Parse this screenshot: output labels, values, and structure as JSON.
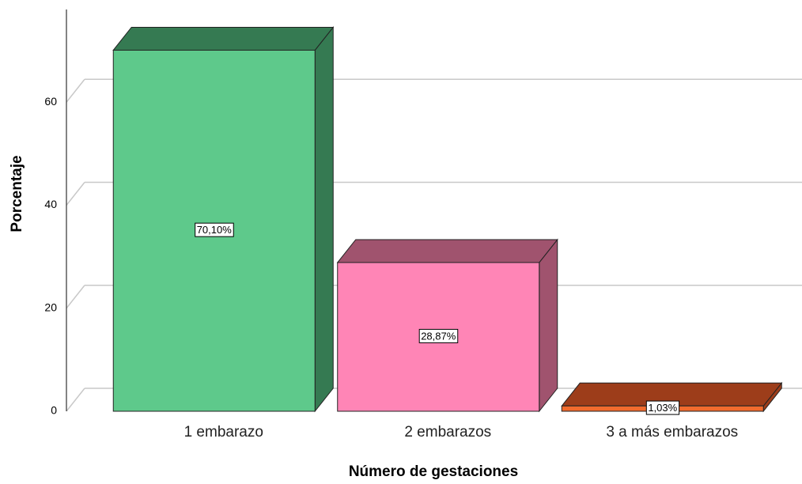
{
  "chart_data": {
    "type": "bar3d",
    "xlabel": "Número de gestaciones",
    "ylabel": "Porcentaje",
    "categories": [
      "1 embarazo",
      "2 embarazos",
      "3 a más embarazos"
    ],
    "values": [
      70.1,
      28.87,
      1.03
    ],
    "value_labels": [
      "70,10%",
      "28,87%",
      "1,03%"
    ],
    "colors": [
      "#5ec98b",
      "#ff85b6",
      "#f26b2d"
    ],
    "shade_colors": [
      "#357a52",
      "#a0536e",
      "#9d3d1a"
    ],
    "ylim": [
      0,
      78
    ],
    "yticks": [
      0,
      20,
      40,
      60
    ],
    "grid": true
  }
}
